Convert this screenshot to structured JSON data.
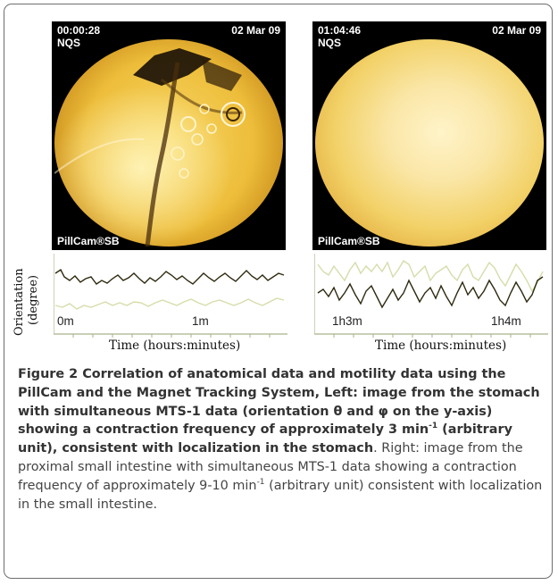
{
  "left_image": {
    "time": "00:00:28",
    "date": "02 Mar 09",
    "mode": "NQS",
    "brand": "PillCam®SB"
  },
  "right_image": {
    "time": "01:04:46",
    "date": "02 Mar 09",
    "mode": "NQS",
    "brand": "PillCam®SB"
  },
  "plots": {
    "ylabel_line1": "Orientation",
    "ylabel_line2": "(degree)",
    "left_xlabel": "Time (hours:minutes)",
    "right_xlabel": "Time (hours:minutes)",
    "left_ticks": [
      "0m",
      "1m"
    ],
    "right_ticks": [
      "1h3m",
      "1h4m"
    ]
  },
  "caption": {
    "bold_1": "Figure 2 Correlation of anatomical data and motility data using the PillCam and the Magnet Tracking System, Left: image from the stomach with simultaneous MTS-1 data (orientation θ and φ on the y-axis) showing a contraction frequency of approximately 3 min",
    "bold_sup": "-1",
    "bold_2": " (arbitrary unit), consistent with localization in the stomach",
    "normal_1": ". Right: image from the proximal small intestine with simultaneous MTS-1 data showing a contraction frequency of approximately 9-10 min",
    "normal_sup": "-1",
    "normal_2": " (arbitrary unit) consistent with localization in the small intestine."
  },
  "colors": {
    "trace_dark": "#2e2a10",
    "trace_light": "#d7dcaa",
    "axis": "#a9b28a"
  }
}
